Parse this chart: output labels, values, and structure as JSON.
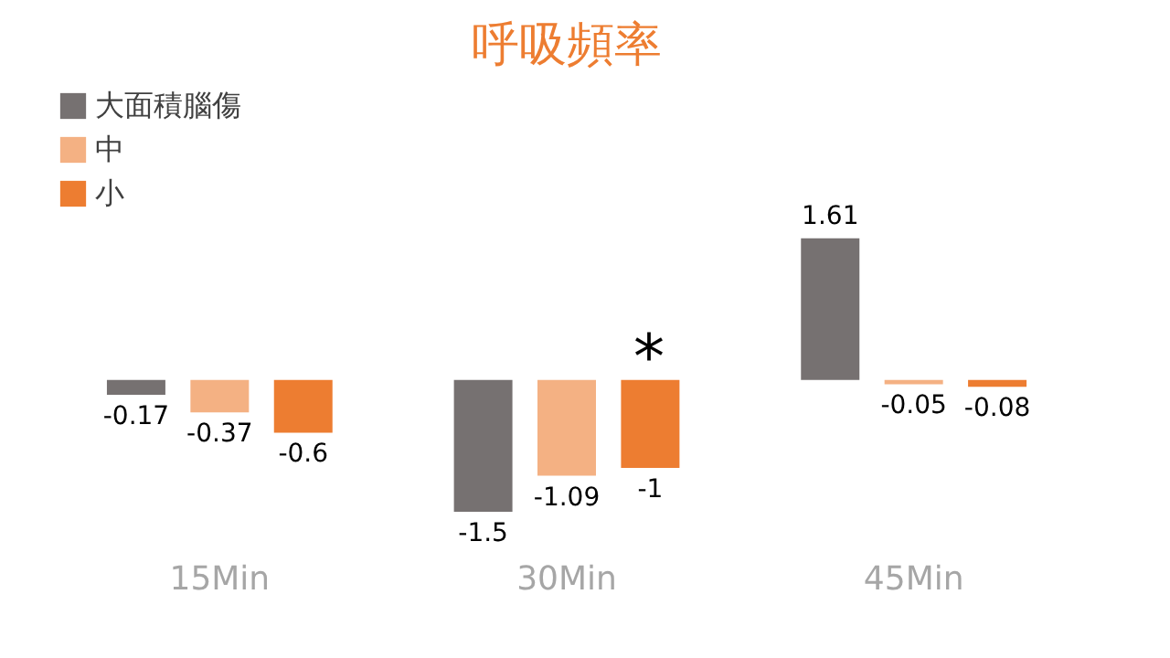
{
  "chart_data": {
    "type": "bar",
    "title": "呼吸頻率",
    "categories": [
      "15Min",
      "30Min",
      "45Min"
    ],
    "series": [
      {
        "name": "大面積腦傷",
        "color": "#767171",
        "values": [
          -0.17,
          -1.5,
          1.61
        ]
      },
      {
        "name": "中",
        "color": "#f4b183",
        "values": [
          -0.37,
          -1.09,
          -0.05
        ]
      },
      {
        "name": "小",
        "color": "#ed7d31",
        "values": [
          -0.6,
          -1,
          -0.08
        ]
      }
    ],
    "data_labels": true,
    "legend": "top left",
    "grid": false,
    "annotations": [
      "*"
    ]
  }
}
